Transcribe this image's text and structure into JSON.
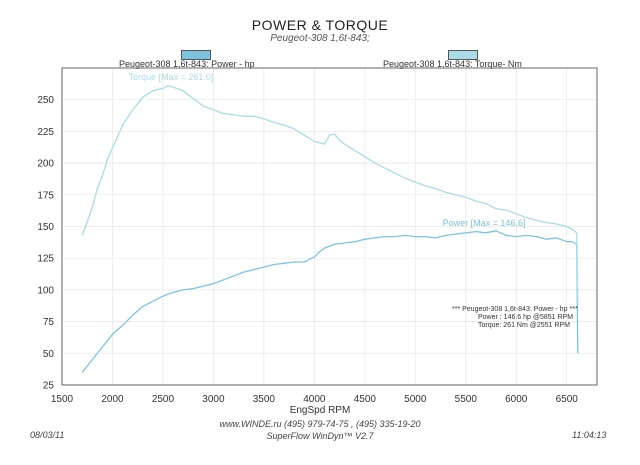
{
  "chart_data": {
    "type": "line",
    "title": "POWER & TORQUE",
    "subtitle": "Peugeot-308 1,6t-843;",
    "xlabel": "EngSpd  RPM",
    "ylabel": "",
    "xlim": [
      1500,
      6800
    ],
    "ylim": [
      25,
      275
    ],
    "xticks": [
      1500,
      2000,
      2500,
      3000,
      3500,
      4000,
      4500,
      5000,
      5500,
      6000,
      6500
    ],
    "yticks": [
      25,
      50,
      75,
      100,
      125,
      150,
      175,
      200,
      225,
      250
    ],
    "grid": true,
    "series": [
      {
        "name": "Peugeot-308 1,6t-843: Power -  hp",
        "color": "#7cc3e0",
        "x": [
          1700,
          1800,
          1900,
          2000,
          2100,
          2200,
          2300,
          2400,
          2500,
          2600,
          2700,
          2800,
          2900,
          3000,
          3100,
          3200,
          3300,
          3400,
          3500,
          3600,
          3700,
          3800,
          3900,
          4000,
          4050,
          4100,
          4200,
          4300,
          4400,
          4500,
          4600,
          4700,
          4800,
          4900,
          5000,
          5100,
          5200,
          5300,
          5400,
          5500,
          5600,
          5700,
          5800,
          5900,
          6000,
          6100,
          6200,
          6300,
          6400,
          6500,
          6550,
          6600,
          6610
        ],
        "values": [
          35,
          45,
          55,
          65,
          72,
          80,
          87,
          91,
          95,
          98,
          100,
          101,
          103,
          105,
          108,
          111,
          114,
          116,
          118,
          120,
          121,
          122,
          122,
          126,
          130,
          133,
          136,
          137,
          138,
          140,
          141,
          142,
          142,
          143,
          142,
          142,
          141,
          143,
          144,
          145,
          146,
          145,
          146.6,
          143,
          142,
          143,
          142,
          140,
          141,
          138,
          138,
          136,
          50
        ],
        "annotation": "Power  [Max = 146.6]"
      },
      {
        "name": "Peugeot-308 1,6t-843: Torque-  Nm",
        "color": "#a9dce6",
        "x": [
          1700,
          1800,
          1850,
          1900,
          1950,
          2000,
          2100,
          2200,
          2300,
          2400,
          2500,
          2550,
          2600,
          2700,
          2800,
          2900,
          3000,
          3100,
          3200,
          3300,
          3400,
          3500,
          3600,
          3700,
          3800,
          3900,
          4000,
          4100,
          4150,
          4200,
          4250,
          4300,
          4400,
          4500,
          4600,
          4700,
          4800,
          4900,
          5000,
          5100,
          5200,
          5300,
          5400,
          5500,
          5600,
          5700,
          5800,
          5900,
          6000,
          6100,
          6200,
          6300,
          6400,
          6500,
          6550,
          6600,
          6610
        ],
        "values": [
          143,
          165,
          180,
          190,
          203,
          212,
          230,
          242,
          252,
          257,
          259,
          261,
          260,
          257,
          251,
          245,
          242,
          239,
          238,
          237,
          237,
          235,
          232,
          230,
          227,
          222,
          217,
          215,
          222,
          223,
          218,
          215,
          210,
          205,
          200,
          196,
          192,
          188,
          185,
          182,
          180,
          177,
          175,
          173,
          170,
          168,
          164,
          163,
          160,
          157,
          155,
          153,
          152,
          150,
          148,
          145,
          90
        ],
        "annotation": "Torque [Max = 261.0]"
      }
    ]
  },
  "info_box": {
    "header": "*** Peugeot-308 1,6t-843: Power -  hp   ***",
    "power_line": "Power :  146.6 hp    @5851 RPM",
    "torque_line": "Torque:   261 Nm    @2551 RPM"
  },
  "footer": {
    "line1": "www.WINDE.ru  (495) 979-74-75 , (495) 335-19-20",
    "line2": "SuperFlow WinDyn™ V2.7",
    "date": "08/03/11",
    "time": "11:04:13"
  }
}
